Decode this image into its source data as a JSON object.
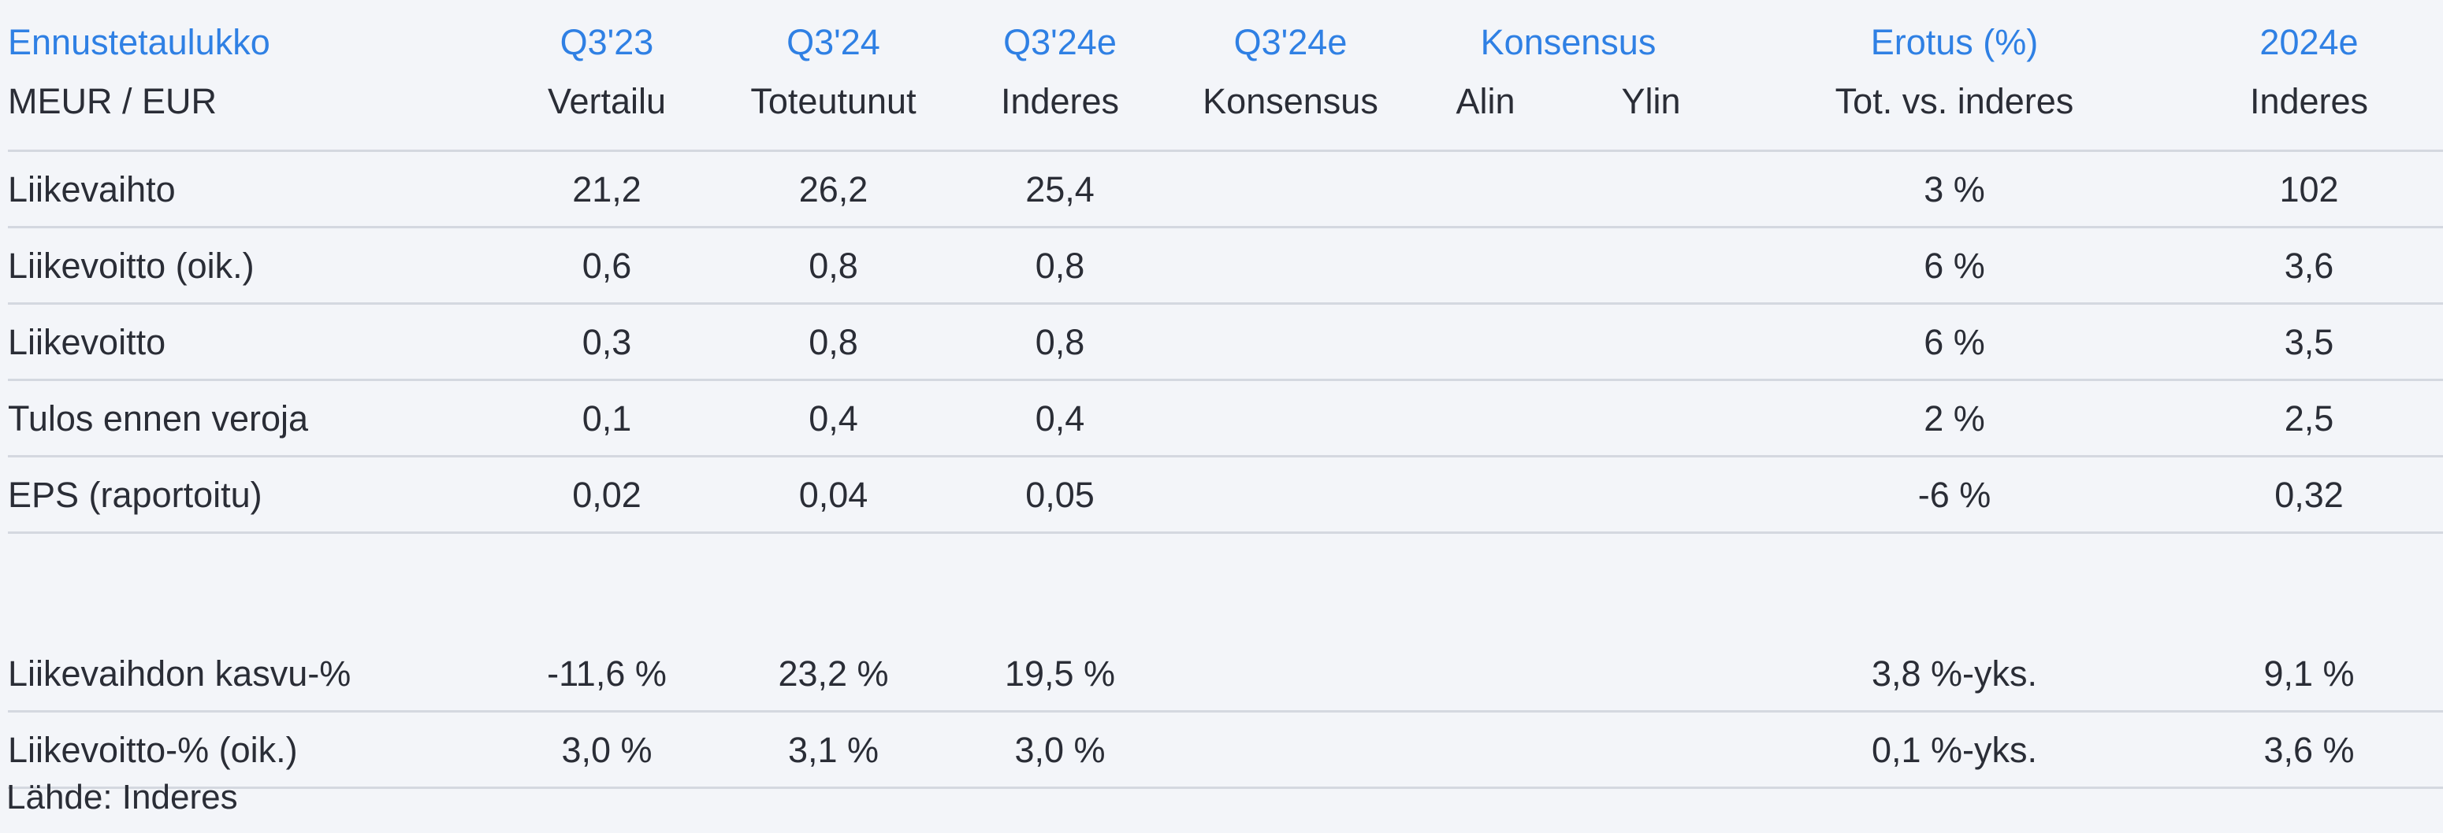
{
  "header_top": {
    "title": "Ennustetaulukko",
    "q323": "Q3'23",
    "q324": "Q3'24",
    "q324e": "Q3'24e",
    "q324e_consensus": "Q3'24e",
    "consensus": "Konsensus",
    "difference": "Erotus (%)",
    "y2024e": "2024e"
  },
  "header_sub": {
    "unit": "MEUR / EUR",
    "comparison": "Vertailu",
    "actual": "Toteutunut",
    "inderes1": "Inderes",
    "consensus": "Konsensus",
    "low": "Alin",
    "high": "Ylin",
    "act_vs_inderes": "Tot. vs. inderes",
    "inderes2": "Inderes"
  },
  "rows": [
    {
      "label": "Liikevaihto",
      "q323": "21,2",
      "q324": "26,2",
      "q324e": "25,4",
      "cons": "",
      "low": "",
      "high": "",
      "diff": "3 %",
      "y2024e": "102"
    },
    {
      "label": "Liikevoitto (oik.)",
      "q323": "0,6",
      "q324": "0,8",
      "q324e": "0,8",
      "cons": "",
      "low": "",
      "high": "",
      "diff": "6 %",
      "y2024e": "3,6"
    },
    {
      "label": "Liikevoitto",
      "q323": "0,3",
      "q324": "0,8",
      "q324e": "0,8",
      "cons": "",
      "low": "",
      "high": "",
      "diff": "6 %",
      "y2024e": "3,5"
    },
    {
      "label": "Tulos ennen veroja",
      "q323": "0,1",
      "q324": "0,4",
      "q324e": "0,4",
      "cons": "",
      "low": "",
      "high": "",
      "diff": "2 %",
      "y2024e": "2,5"
    },
    {
      "label": "EPS (raportoitu)",
      "q323": "0,02",
      "q324": "0,04",
      "q324e": "0,05",
      "cons": "",
      "low": "",
      "high": "",
      "diff": "-6 %",
      "y2024e": "0,32"
    }
  ],
  "rows2": [
    {
      "label": "Liikevaihdon kasvu-%",
      "q323": "-11,6 %",
      "q324": "23,2 %",
      "q324e": "19,5 %",
      "cons": "",
      "low": "",
      "high": "",
      "diff": "3,8 %-yks.",
      "y2024e": "9,1 %"
    },
    {
      "label": "Liikevoitto-% (oik.)",
      "q323": "3,0 %",
      "q324": "3,1 %",
      "q324e": "3,0 %",
      "cons": "",
      "low": "",
      "high": "",
      "diff": "0,1 %-yks.",
      "y2024e": "3,6 %"
    }
  ],
  "source": "Lähde: Inderes",
  "colors": {
    "header_blue": "#2f80e4",
    "text": "#2a2d36",
    "background": "#f3f5f9",
    "divider": "#d4d8e0"
  }
}
